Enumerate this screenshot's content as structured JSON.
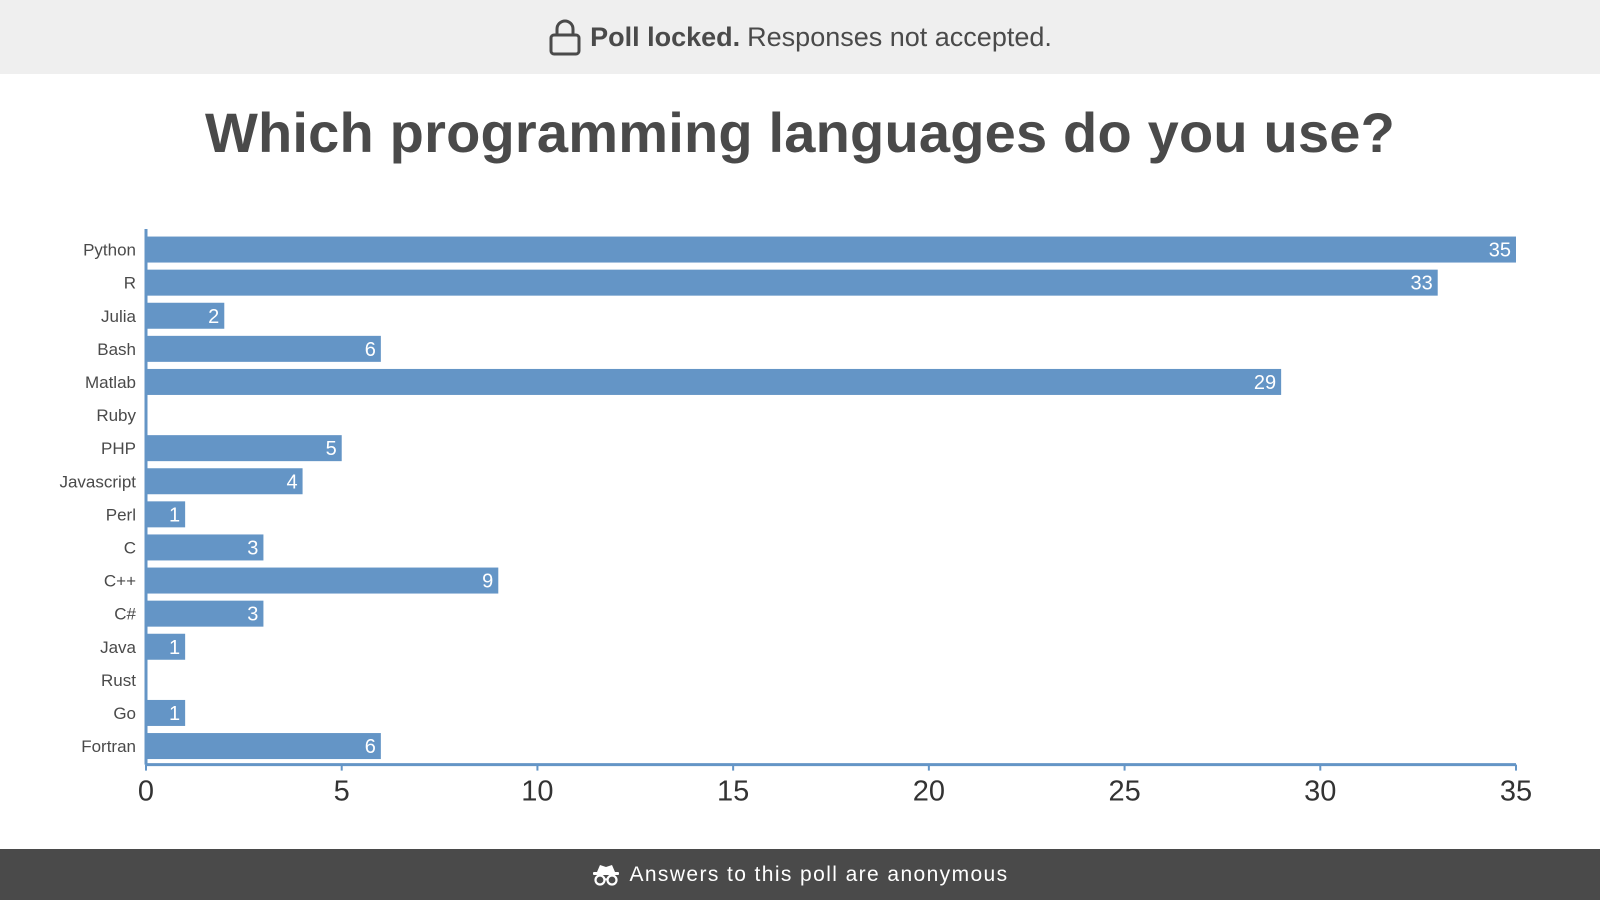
{
  "banner": {
    "status_bold": "Poll locked.",
    "status_text": "Responses not accepted.",
    "icon": "lock-icon"
  },
  "poll": {
    "question": "Which programming languages do you use?"
  },
  "footer": {
    "text": "Answers to this poll are anonymous",
    "icon": "incognito-icon"
  },
  "colors": {
    "bar": "#6495c6",
    "axis": "#6495c6",
    "text": "#4a4a4a",
    "banner_bg": "#efefef",
    "footer_bg": "#4a4a4a"
  },
  "chart_data": {
    "type": "bar",
    "orientation": "horizontal",
    "categories": [
      "Python",
      "R",
      "Julia",
      "Bash",
      "Matlab",
      "Ruby",
      "PHP",
      "Javascript",
      "Perl",
      "C",
      "C++",
      "C#",
      "Java",
      "Rust",
      "Go",
      "Fortran"
    ],
    "values": [
      35,
      33,
      2,
      6,
      29,
      0,
      5,
      4,
      1,
      3,
      9,
      3,
      1,
      0,
      1,
      6
    ],
    "xlim": [
      0,
      35
    ],
    "xticks": [
      0,
      5,
      10,
      15,
      20,
      25,
      30,
      35
    ],
    "data_labels": true,
    "grid": false,
    "legend": "none"
  }
}
